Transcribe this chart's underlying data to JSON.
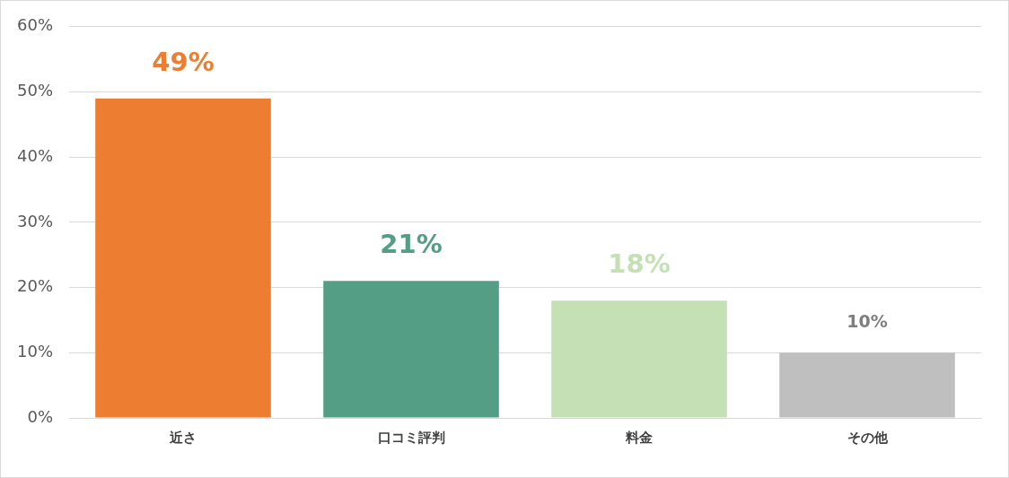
{
  "chart_data": {
    "type": "bar",
    "categories": [
      "近さ",
      "口コミ評判",
      "料金",
      "その他"
    ],
    "values": [
      49,
      21,
      18,
      10
    ],
    "colors": [
      "#ed7d31",
      "#549e86",
      "#c5e0b4",
      "#bfbfbf"
    ],
    "value_labels": [
      "49%",
      "21%",
      "18%",
      "10%"
    ],
    "ylim": [
      0,
      60
    ],
    "yticks": [
      {
        "value": 0,
        "label": "0%"
      },
      {
        "value": 10,
        "label": "10%"
      },
      {
        "value": 20,
        "label": "20%"
      },
      {
        "value": 30,
        "label": "30%"
      },
      {
        "value": 40,
        "label": "40%"
      },
      {
        "value": 50,
        "label": "50%"
      },
      {
        "value": 60,
        "label": "60%"
      }
    ],
    "grid": "y",
    "legend": false
  }
}
